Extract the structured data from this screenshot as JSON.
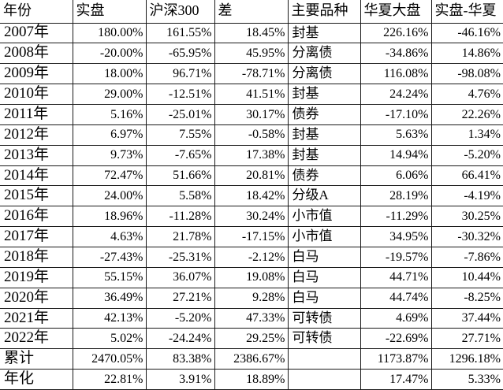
{
  "table": {
    "columns": [
      {
        "key": "year",
        "label": "年份"
      },
      {
        "key": "actual",
        "label": "实盘"
      },
      {
        "key": "hs300",
        "label": "沪深300"
      },
      {
        "key": "diff",
        "label": "差"
      },
      {
        "key": "main-variety",
        "label": "主要品种"
      },
      {
        "key": "huaxia-dapan",
        "label": "华夏大盘"
      },
      {
        "key": "actual-vs-huaxia",
        "label": "实盘-华夏"
      }
    ],
    "rows": [
      [
        "2007年",
        "180.00%",
        "161.55%",
        "18.45%",
        "封基",
        "226.16%",
        "-46.16%"
      ],
      [
        "2008年",
        "-20.00%",
        "-65.95%",
        "45.95%",
        "分离债",
        "-34.86%",
        "14.86%"
      ],
      [
        "2009年",
        "18.00%",
        "96.71%",
        "-78.71%",
        "分离债",
        "116.08%",
        "-98.08%"
      ],
      [
        "2010年",
        "29.00%",
        "-12.51%",
        "41.51%",
        "封基",
        "24.24%",
        "4.76%"
      ],
      [
        "2011年",
        "5.16%",
        "-25.01%",
        "30.17%",
        "债券",
        "-17.10%",
        "22.26%"
      ],
      [
        "2012年",
        "6.97%",
        "7.55%",
        "-0.58%",
        "封基",
        "5.63%",
        "1.34%"
      ],
      [
        "2013年",
        "9.73%",
        "-7.65%",
        "17.38%",
        "封基",
        "14.94%",
        "-5.20%"
      ],
      [
        "2014年",
        "72.47%",
        "51.66%",
        "20.81%",
        "债券",
        "6.06%",
        "66.41%"
      ],
      [
        "2015年",
        "24.00%",
        "5.58%",
        "18.42%",
        "分级A",
        "28.19%",
        "-4.19%"
      ],
      [
        "2016年",
        "18.96%",
        "-11.28%",
        "30.24%",
        "小市值",
        "-11.29%",
        "30.25%"
      ],
      [
        "2017年",
        "4.63%",
        "21.78%",
        "-17.15%",
        "小市值",
        "34.95%",
        "-30.32%"
      ],
      [
        "2018年",
        "-27.43%",
        "-25.31%",
        "-2.12%",
        "白马",
        "-19.57%",
        "-7.86%"
      ],
      [
        "2019年",
        "55.15%",
        "36.07%",
        "19.08%",
        "白马",
        "44.71%",
        "10.44%"
      ],
      [
        "2020年",
        "36.49%",
        "27.21%",
        "9.28%",
        "白马",
        "44.74%",
        "-8.25%"
      ],
      [
        "2021年",
        "42.13%",
        "-5.20%",
        "47.33%",
        "可转债",
        "4.69%",
        "37.44%"
      ],
      [
        "2022年",
        "5.02%",
        "-24.24%",
        "29.25%",
        "可转债",
        "-22.69%",
        "27.71%"
      ],
      [
        "累计",
        "2470.05%",
        "83.38%",
        "2386.67%",
        "",
        "1173.87%",
        "1296.18%"
      ],
      [
        "年化",
        "22.81%",
        "3.91%",
        "18.89%",
        "",
        "17.47%",
        "5.33%"
      ]
    ]
  },
  "colors": {
    "background": "#ffffff",
    "text": "#000000",
    "grid_line": "#1a1a1a"
  }
}
